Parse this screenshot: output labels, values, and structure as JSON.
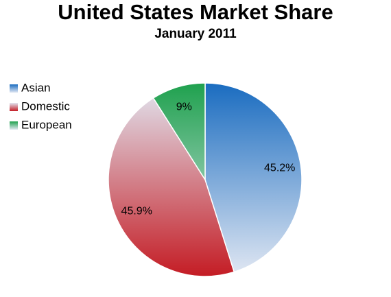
{
  "chart_data": {
    "type": "pie",
    "title": "United States Market Share",
    "subtitle": "January 2011",
    "categories": [
      "Asian",
      "Domestic",
      "European"
    ],
    "values": [
      45.2,
      45.9,
      9
    ],
    "value_labels": [
      "45.2%",
      "45.9%",
      "9%"
    ],
    "colors": [
      "#1a6cc0",
      "#c41c24",
      "#1fa14e"
    ],
    "legend": "left"
  }
}
